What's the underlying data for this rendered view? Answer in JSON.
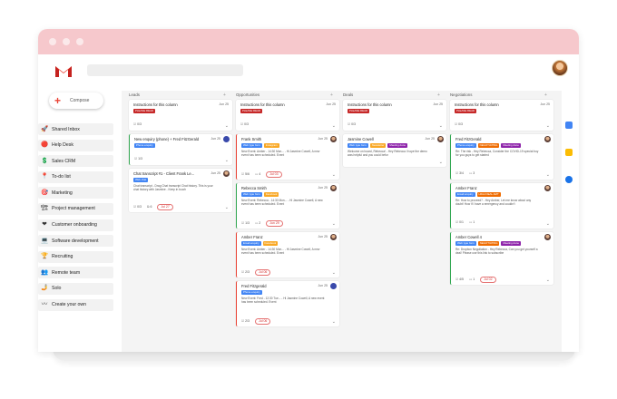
{
  "sidebar": {
    "compose_label": "Compose",
    "items": [
      {
        "label": "Shared Inbox",
        "icon": "🚀"
      },
      {
        "label": "Help Desk",
        "icon": "🔴"
      },
      {
        "label": "Sales CRM",
        "icon": "💲"
      },
      {
        "label": "To-do list",
        "icon": "📍"
      },
      {
        "label": "Marketing",
        "icon": "🎯"
      },
      {
        "label": "Project management",
        "icon": "🏗"
      },
      {
        "label": "Customer onboarding",
        "icon": "❤"
      },
      {
        "label": "Software development",
        "icon": "💻"
      },
      {
        "label": "Recruiting",
        "icon": "🏆"
      },
      {
        "label": "Remote team",
        "icon": "👥"
      },
      {
        "label": "Solo",
        "icon": "🤳"
      },
      {
        "label": "Create your own",
        "icon": "〰"
      }
    ]
  },
  "columns": [
    {
      "name": "Leads",
      "cards": [
        {
          "title": "Instructions for this column",
          "date": "Jun 25",
          "tags": [
            {
              "text": "PLEASE READ",
              "color": "#c62828"
            }
          ],
          "body": "",
          "meta": {
            "tasks": "0/3",
            "comments": "",
            "attach": "",
            "due": ""
          },
          "border": "none",
          "height": 34
        },
        {
          "title": "New enquiry (phone) + Fred FitzGerald",
          "date": "Jun 25",
          "tags": [
            {
              "text": "Phone enquiry",
              "color": "#4285f4"
            }
          ],
          "body": "",
          "meta": {
            "tasks": "1/3",
            "comments": "",
            "attach": "",
            "due": ""
          },
          "border": "green",
          "height": 34,
          "avatar": "blue"
        },
        {
          "title": "Chat transcript #1 - Client Frank Le...",
          "date": "Jun 25",
          "tags": [
            {
              "text": "Web chat",
              "color": "#4285f4"
            }
          ],
          "body": "Chat transcript - Drag Chat transcript Chat history. This is your chat history with Jasmine - Keep in touch",
          "meta": {
            "tasks": "0/3",
            "comments": "",
            "attach": "6",
            "due": "Jul 27"
          },
          "border": "none",
          "height": 48,
          "avatar": "pair"
        }
      ]
    },
    {
      "name": "Opportunities",
      "cards": [
        {
          "title": "Instructions for this column",
          "date": "Jun 25",
          "tags": [
            {
              "text": "PLEASE READ",
              "color": "#c62828"
            }
          ],
          "body": "",
          "meta": {
            "tasks": "0/3",
            "comments": "",
            "attach": "",
            "due": ""
          },
          "border": "none",
          "height": 34
        },
        {
          "title": "Frank Smith",
          "date": "Jun 25",
          "tags": [
            {
              "text": "Web type form",
              "color": "#4285f4"
            },
            {
              "text": "Instagram",
              "color": "#f9a825"
            }
          ],
          "body": "New Event: Amber - 14:30 Mon... - Hi Jasmine Cowell, A new event has been scheduled. Event",
          "meta": {
            "tasks": "5/6",
            "comments": "4",
            "attach": "",
            "due": "Jul 03"
          },
          "border": "red",
          "height": 50,
          "avatar": "face"
        },
        {
          "title": "Rebecca Smith",
          "date": "Jun 25",
          "tags": [
            {
              "text": "Web type form",
              "color": "#4285f4"
            },
            {
              "text": "Facebook",
              "color": "#f9a825"
            }
          ],
          "body": "New Event: Rebecca - 14:30 Mon... - Hi Jasmine Cowell, A new event has been scheduled. Event",
          "meta": {
            "tasks": "1/3",
            "comments": "2",
            "attach": "",
            "due": "Jun 29"
          },
          "border": "green",
          "height": 50,
          "avatar": "face"
        },
        {
          "title": "Amber Franz",
          "date": "Jun 25",
          "tags": [
            {
              "text": "Email enquiry",
              "color": "#4285f4"
            },
            {
              "text": "Facebook",
              "color": "#f9a825"
            }
          ],
          "body": "New Event: Amber - 14:30 Mon... - Hi Jasmine Cowell, A new event has been scheduled. Event",
          "meta": {
            "tasks": "2/3",
            "comments": "",
            "attach": "",
            "due": "Jul 06"
          },
          "border": "red",
          "height": 50,
          "avatar": "face"
        },
        {
          "title": "Fred Fitzgerald",
          "date": "Jun 25",
          "tags": [
            {
              "text": "Phone enquiry",
              "color": "#4285f4"
            }
          ],
          "body": "New Event: Fred - 12:30 Tue... - Hi Jasmine Cowell, A new event has been scheduled. Event",
          "meta": {
            "tasks": "2/3",
            "comments": "",
            "attach": "",
            "due": "Jul 06"
          },
          "border": "red",
          "height": 50,
          "avatar": "blue"
        }
      ]
    },
    {
      "name": "Deals",
      "cards": [
        {
          "title": "Instructions for this column",
          "date": "Jun 25",
          "tags": [
            {
              "text": "PLEASE READ",
              "color": "#c62828"
            }
          ],
          "body": "",
          "meta": {
            "tasks": "0/3",
            "comments": "",
            "attach": "",
            "due": ""
          },
          "border": "none",
          "height": 34
        },
        {
          "title": "Jasmine Cowell",
          "date": "Jun 25",
          "tags": [
            {
              "text": "Web type form",
              "color": "#4285f4"
            },
            {
              "text": "Newsletter",
              "color": "#f9a825"
            },
            {
              "text": "Meeting done",
              "color": "#8e24aa"
            }
          ],
          "body": "Welcome on board, Rebecca! - Hey Rebecca I hope the demo was helpful and you could befor",
          "meta": {
            "tasks": "",
            "comments": "",
            "attach": "",
            "due": ""
          },
          "border": "none",
          "height": 36,
          "avatar": "face"
        }
      ]
    },
    {
      "name": "Negotiations",
      "cards": [
        {
          "title": "Instructions for this column",
          "date": "Jun 25",
          "tags": [
            {
              "text": "PLEASE READ",
              "color": "#c62828"
            }
          ],
          "body": "",
          "meta": {
            "tasks": "0/3",
            "comments": "",
            "attach": "",
            "due": ""
          },
          "border": "none",
          "height": 34
        },
        {
          "title": "Fred FitzGerald",
          "date": "",
          "tags": [
            {
              "text": "Phone enquiry",
              "color": "#4285f4"
            },
            {
              "text": "NEGOTIATING",
              "color": "#ef6c00"
            },
            {
              "text": "Meeting done",
              "color": "#8e24aa"
            }
          ],
          "body": "Re: The risk - Hey Rebecca, Consider the COVID-19 special buy for you guys to get started",
          "meta": {
            "tasks": "3/4",
            "comments": "3",
            "attach": "",
            "due": ""
          },
          "border": "green",
          "height": 50,
          "avatar": "pair"
        },
        {
          "title": "Amber Franz",
          "date": "",
          "tags": [
            {
              "text": "Email enquiry",
              "color": "#4285f4"
            },
            {
              "text": "HIGH DEAL AMT",
              "color": "#ef6c00"
            }
          ],
          "body": "Re: How to proceed? - Hey Amber, Let me know about any doubt! How if I have a emergency and couldn't",
          "meta": {
            "tasks": "0/1",
            "comments": "1",
            "attach": "",
            "due": ""
          },
          "border": "green",
          "height": 50,
          "avatar": "pair"
        },
        {
          "title": "Amber Cowell 4",
          "date": "",
          "tags": [
            {
              "text": "Web type form",
              "color": "#4285f4"
            },
            {
              "text": "NEGOTIATING",
              "color": "#ef6c00"
            },
            {
              "text": "Meeting done",
              "color": "#8e24aa"
            }
          ],
          "body": "Re: Dropbox Negotiation - Hey Rebecca, Can you get yourself a deal! Please use this link to subscribe",
          "meta": {
            "tasks": "4/5",
            "comments": "1",
            "attach": "",
            "due": "Jul 02"
          },
          "border": "green",
          "height": 58,
          "avatar": "pair"
        }
      ]
    }
  ]
}
